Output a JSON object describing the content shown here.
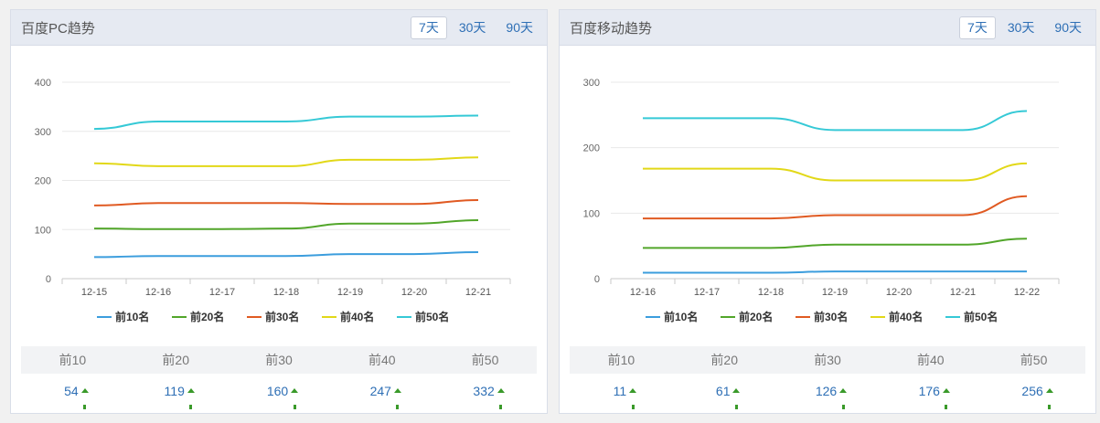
{
  "panels": {
    "pc": {
      "title": "百度PC趋势",
      "tabs": [
        "7天",
        "30天",
        "90天"
      ],
      "active_tab": "7天",
      "summary": {
        "headers": [
          "前10",
          "前20",
          "前30",
          "前40",
          "前50"
        ],
        "values": [
          "54",
          "119",
          "160",
          "247",
          "332"
        ]
      }
    },
    "mobile": {
      "title": "百度移动趋势",
      "tabs": [
        "7天",
        "30天",
        "90天"
      ],
      "active_tab": "7天",
      "summary": {
        "headers": [
          "前10",
          "前20",
          "前30",
          "前40",
          "前50"
        ],
        "values": [
          "11",
          "61",
          "126",
          "176",
          "256"
        ]
      }
    }
  },
  "colors": {
    "top10": "#3b9ddd",
    "top20": "#52a62a",
    "top30": "#e05a22",
    "top40": "#e2d818",
    "top50": "#35c9d6",
    "trend_up": "#3a9a2a"
  },
  "chart_data": [
    {
      "type": "line",
      "title": "",
      "xlabel": "",
      "ylabel": "",
      "categories": [
        "12-15",
        "12-16",
        "12-17",
        "12-18",
        "12-19",
        "12-20",
        "12-21"
      ],
      "ylim": [
        0,
        400
      ],
      "yticks": [
        0,
        100,
        200,
        300,
        400
      ],
      "grid": true,
      "legend": "bottom-center",
      "series": [
        {
          "name": "前10名",
          "color": "#3b9ddd",
          "values": [
            44,
            46,
            46,
            46,
            50,
            50,
            54
          ]
        },
        {
          "name": "前20名",
          "color": "#52a62a",
          "values": [
            102,
            101,
            101,
            102,
            112,
            112,
            119
          ]
        },
        {
          "name": "前30名",
          "color": "#e05a22",
          "values": [
            149,
            154,
            154,
            154,
            152,
            152,
            160
          ]
        },
        {
          "name": "前40名",
          "color": "#e2d818",
          "values": [
            235,
            229,
            229,
            229,
            242,
            242,
            247
          ]
        },
        {
          "name": "前50名",
          "color": "#35c9d6",
          "values": [
            305,
            320,
            320,
            320,
            330,
            330,
            332
          ]
        }
      ]
    },
    {
      "type": "line",
      "title": "",
      "xlabel": "",
      "ylabel": "",
      "categories": [
        "12-16",
        "12-17",
        "12-18",
        "12-19",
        "12-20",
        "12-21",
        "12-22"
      ],
      "ylim": [
        0,
        300
      ],
      "yticks": [
        0,
        100,
        200,
        300
      ],
      "grid": true,
      "legend": "bottom-center",
      "series": [
        {
          "name": "前10名",
          "color": "#3b9ddd",
          "values": [
            9,
            9,
            9,
            11,
            11,
            11,
            11
          ]
        },
        {
          "name": "前20名",
          "color": "#52a62a",
          "values": [
            47,
            47,
            47,
            52,
            52,
            52,
            61
          ]
        },
        {
          "name": "前30名",
          "color": "#e05a22",
          "values": [
            92,
            92,
            92,
            97,
            97,
            97,
            126
          ]
        },
        {
          "name": "前40名",
          "color": "#e2d818",
          "values": [
            168,
            168,
            168,
            150,
            150,
            150,
            176
          ]
        },
        {
          "name": "前50名",
          "color": "#35c9d6",
          "values": [
            245,
            245,
            245,
            227,
            227,
            227,
            256
          ]
        }
      ]
    }
  ]
}
